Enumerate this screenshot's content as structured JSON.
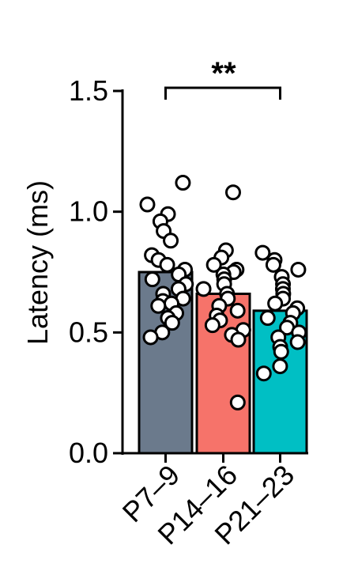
{
  "chart_data": {
    "type": "bar",
    "xlabel": "",
    "ylabel": "Latency (ms)",
    "ylim": [
      0,
      1.5
    ],
    "yticks": [
      {
        "value": 0.0,
        "label": "0.0"
      },
      {
        "value": 0.5,
        "label": "0.5"
      },
      {
        "value": 1.0,
        "label": "1.0"
      },
      {
        "value": 1.5,
        "label": "1.5"
      }
    ],
    "categories": [
      "P7–9",
      "P14–16",
      "P21–23"
    ],
    "values": [
      0.75,
      0.66,
      0.59
    ],
    "colors": [
      "#6b7a8c",
      "#f6736a",
      "#00bfc4"
    ],
    "points": [
      [
        1.12,
        1.03,
        0.99,
        0.96,
        0.92,
        0.88,
        0.82,
        0.8,
        0.78,
        0.76,
        0.74,
        0.72,
        0.7,
        0.68,
        0.66,
        0.64,
        0.63,
        0.62,
        0.61,
        0.58,
        0.56,
        0.54,
        0.5,
        0.48
      ],
      [
        1.08,
        0.84,
        0.81,
        0.78,
        0.76,
        0.75,
        0.74,
        0.72,
        0.7,
        0.68,
        0.66,
        0.64,
        0.61,
        0.59,
        0.57,
        0.55,
        0.53,
        0.51,
        0.49,
        0.47,
        0.21
      ],
      [
        0.83,
        0.8,
        0.78,
        0.76,
        0.73,
        0.7,
        0.68,
        0.66,
        0.64,
        0.62,
        0.6,
        0.58,
        0.56,
        0.54,
        0.52,
        0.5,
        0.48,
        0.46,
        0.44,
        0.42,
        0.36,
        0.33
      ]
    ],
    "significance": {
      "between": [
        0,
        2
      ],
      "label": "**"
    }
  }
}
